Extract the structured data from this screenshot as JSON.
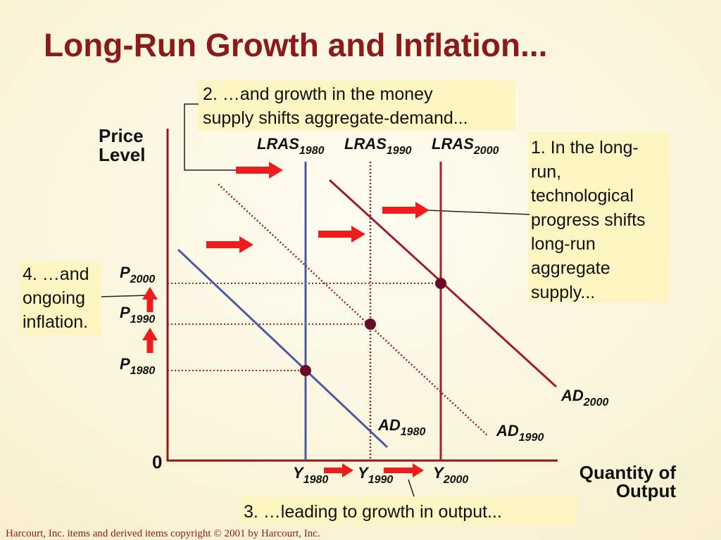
{
  "title": "Long-Run Growth and Inflation...",
  "axes": {
    "y_label": [
      "Price",
      "Level"
    ],
    "x_label": [
      "Quantity of",
      "Output"
    ],
    "origin": "0"
  },
  "curves": {
    "lras": [
      {
        "main": "LRAS",
        "sub": "1980"
      },
      {
        "main": "LRAS",
        "sub": "1990"
      },
      {
        "main": "LRAS",
        "sub": "2000"
      }
    ],
    "ad": [
      {
        "main": "AD",
        "sub": "1980"
      },
      {
        "main": "AD",
        "sub": "1990"
      },
      {
        "main": "AD",
        "sub": "2000"
      }
    ]
  },
  "price_levels": [
    {
      "main": "P",
      "sub": "1980"
    },
    {
      "main": "P",
      "sub": "1990"
    },
    {
      "main": "P",
      "sub": "2000"
    }
  ],
  "outputs": [
    {
      "main": "Y",
      "sub": "1980"
    },
    {
      "main": "Y",
      "sub": "1990"
    },
    {
      "main": "Y",
      "sub": "2000"
    }
  ],
  "callouts": {
    "step1": [
      "1. In the long-",
      "run,",
      "technological",
      "progress shifts",
      "long-run",
      "aggregate",
      "supply..."
    ],
    "step2": [
      "2. …and growth in the money",
      "supply shifts aggregate-demand..."
    ],
    "step3": [
      "3. …leading to growth in output..."
    ],
    "step4": [
      "4. …and",
      "ongoing",
      "inflation."
    ]
  },
  "footer": "Harcourt, Inc. items and derived items copyright © 2001 by Harcourt, Inc."
}
